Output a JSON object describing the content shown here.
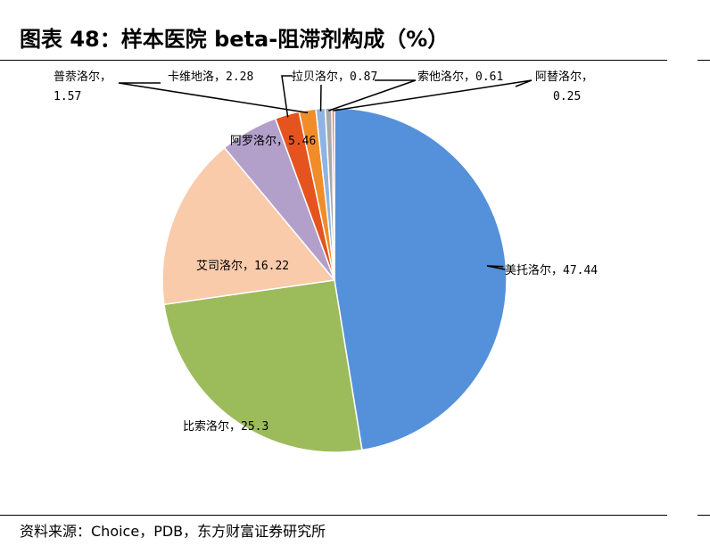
{
  "figure": {
    "title": "图表 48：样本医院 beta-阻滞剂构成（%）",
    "source": "资料来源：Choice，PDB，东方财富证券研究所"
  },
  "chart_data": {
    "type": "pie",
    "title": "图表 48：样本医院 beta-阻滞剂构成（%）",
    "unit": "%",
    "slices": [
      {
        "label": "美托洛尔",
        "value": 47.44,
        "display": "美托洛尔，47.44",
        "color": "#5591DA"
      },
      {
        "label": "比索洛尔",
        "value": 25.3,
        "display": "比索洛尔，25.3",
        "color": "#9CBB5A"
      },
      {
        "label": "艾司洛尔",
        "value": 16.22,
        "display": "艾司洛尔，16.22",
        "color": "#F9CBAA"
      },
      {
        "label": "阿罗洛尔",
        "value": 5.46,
        "display": "阿罗洛尔，5.46",
        "color": "#B2A0CB"
      },
      {
        "label": "卡维地洛",
        "value": 2.28,
        "display": "卡维地洛，2.28",
        "color": "#E5541E"
      },
      {
        "label": "普萘洛尔",
        "value": 1.57,
        "display": [
          "普萘洛尔，",
          "1.57"
        ],
        "color": "#F08C2A"
      },
      {
        "label": "拉贝洛尔",
        "value": 0.87,
        "display": "拉贝洛尔，0.87",
        "color": "#8FB4E3"
      },
      {
        "label": "索他洛尔",
        "value": 0.61,
        "display": "索他洛尔，0.61",
        "color": "#A9A9A9"
      },
      {
        "label": "阿替洛尔",
        "value": 0.25,
        "display": [
          "阿替洛尔，",
          "0.25"
        ],
        "color": "#E07070"
      }
    ]
  }
}
